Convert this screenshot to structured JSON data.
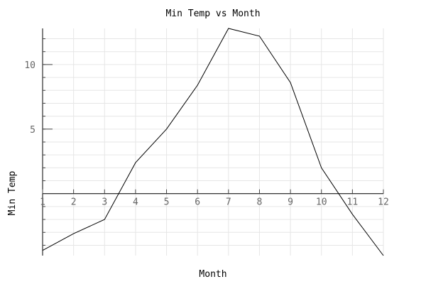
{
  "chart_data": {
    "type": "line",
    "title": "Min Temp vs Month",
    "xlabel": "Month",
    "ylabel": "Min Temp",
    "x": [
      1,
      2,
      3,
      4,
      5,
      6,
      7,
      8,
      9,
      10,
      11,
      12
    ],
    "x_tick_labels": [
      "1",
      "2",
      "3",
      "4",
      "5",
      "6",
      "7",
      "8",
      "9",
      "10",
      "11",
      "12"
    ],
    "y_tick_values": [
      5,
      10
    ],
    "y_tick_labels": [
      "5",
      "10"
    ],
    "series": [
      {
        "values": [
          -4.4,
          -3.1,
          -2.0,
          2.4,
          5.0,
          8.4,
          12.8,
          12.2,
          8.6,
          2.0,
          -1.6,
          -4.8
        ]
      }
    ],
    "xlim": [
      1,
      12
    ],
    "ylim": [
      -4.8,
      12.8
    ],
    "grid": true,
    "colors": {
      "line": "#000000",
      "grid": "#e6e6e6",
      "tick_label": "#666666"
    }
  }
}
